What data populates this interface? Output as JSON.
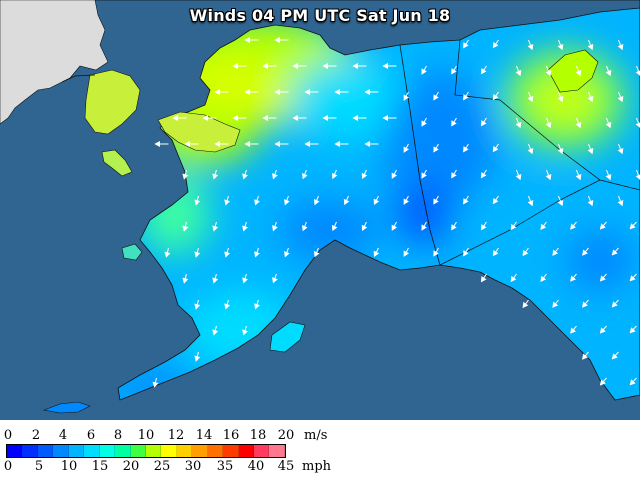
{
  "title": "Winds 04 PM UTC Sat Jun 18",
  "colors": {
    "ocean": "#2f6590",
    "land_outside": "#d9d9d9",
    "wind_scale": [
      "#0000ff",
      "#0030ff",
      "#005bff",
      "#0088ff",
      "#00b4ff",
      "#00dcff",
      "#00ffe6",
      "#00ffa0",
      "#40ff40",
      "#b4ff00",
      "#ffff00",
      "#ffd000",
      "#ffa000",
      "#ff7000",
      "#ff3c00",
      "#ff0000",
      "#ff3c60",
      "#ff7890"
    ]
  },
  "legend": {
    "ms_ticks": [
      "0",
      "2",
      "4",
      "6",
      "8",
      "10",
      "12",
      "14",
      "16",
      "18",
      "20"
    ],
    "ms_unit": "m/s",
    "mph_ticks": [
      "0",
      "5",
      "10",
      "15",
      "20",
      "25",
      "30",
      "35",
      "40",
      "45"
    ],
    "mph_unit": "mph"
  }
}
